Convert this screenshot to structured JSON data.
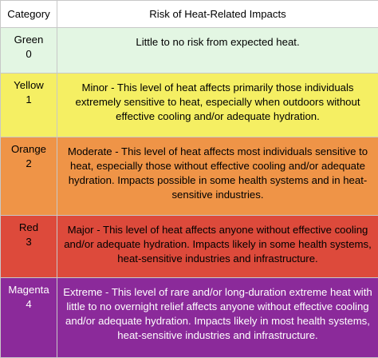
{
  "headers": {
    "category": "Category",
    "risk": "Risk of Heat-Related Impacts"
  },
  "rows": [
    {
      "name": "Green",
      "level": "0",
      "color": "#e3f6e3",
      "description": "Little to no risk from expected heat."
    },
    {
      "name": "Yellow",
      "level": "1",
      "color": "#f5ef63",
      "description": "Minor - This level of heat affects primarily those individuals extremely sensitive to heat, especially when outdoors without effective cooling and/or adequate hydration."
    },
    {
      "name": "Orange",
      "level": "2",
      "color": "#ef9447",
      "description": "Moderate - This level of heat affects most individuals sensitive to heat, especially those without effective cooling and/or adequate hydration. Impacts possible in some health systems and in heat-sensitive industries."
    },
    {
      "name": "Red",
      "level": "3",
      "color": "#dd4a3b",
      "description": "Major - This level of heat affects anyone without effective cooling and/or adequate hydration. Impacts likely in some health systems, heat-sensitive industries and infrastructure."
    },
    {
      "name": "Magenta",
      "level": "4",
      "color": "#8b2a9a",
      "description": "Extreme - This level of rare and/or long-duration extreme heat with little to no overnight relief affects anyone without effective cooling and/or adequate hydration. Impacts likely in most health systems, heat-sensitive industries and infrastructure."
    }
  ]
}
